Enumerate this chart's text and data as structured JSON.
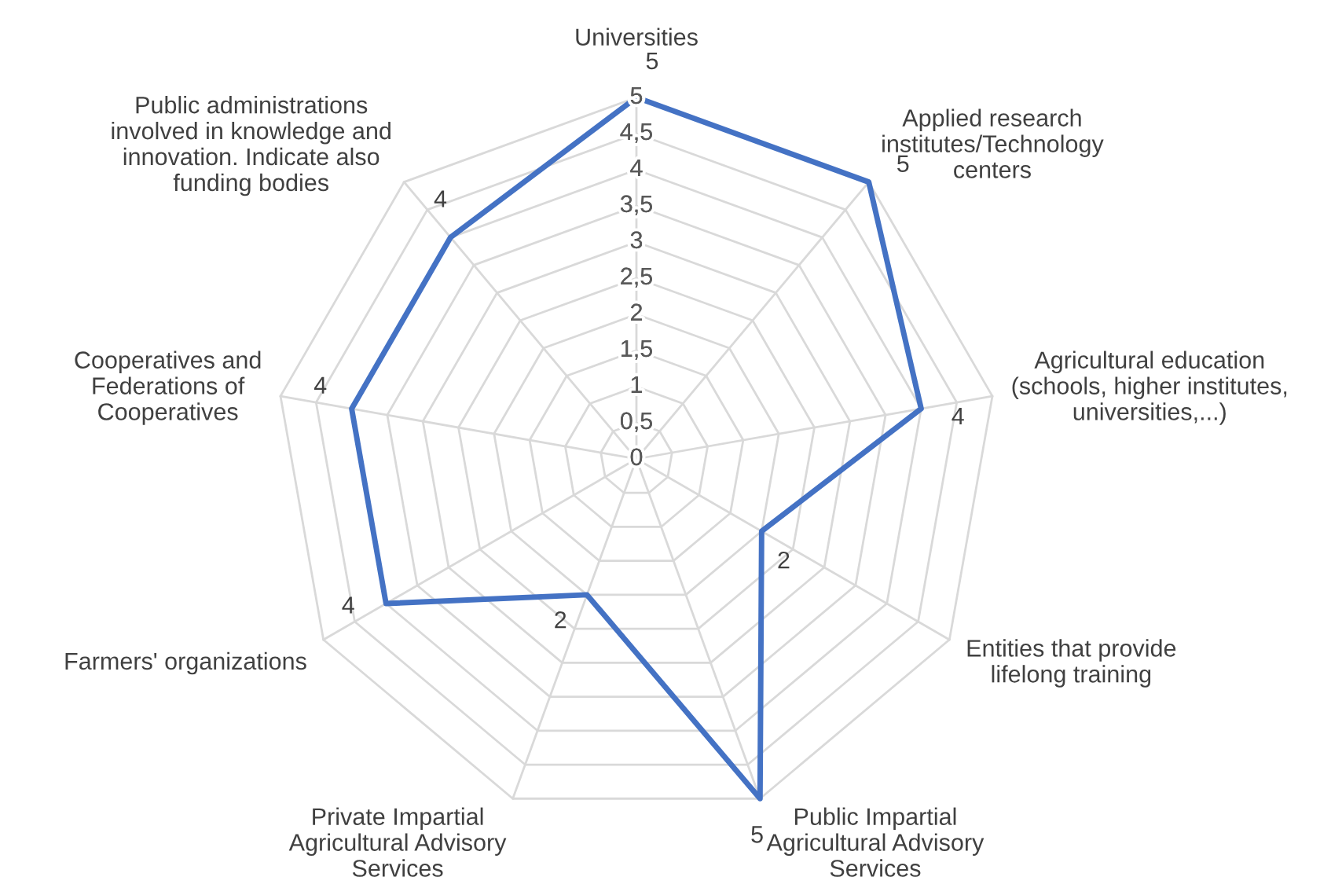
{
  "chart_data": {
    "type": "radar",
    "categories": [
      "Universities",
      "Applied research\ninstitutes/Technology\ncenters",
      "Agricultural education\n(schools, higher institutes,\nuniversities,...)",
      "Entities that provide\nlifelong training",
      "Public Impartial\nAgricultural Advisory\nServices",
      "Private Impartial\nAgricultural Advisory\nServices",
      "Farmers' organizations",
      "Cooperatives and\nFederations of\nCooperatives",
      "Public administrations\ninvolved in knowledge and\ninnovation. Indicate also\nfunding bodies"
    ],
    "series": [
      {
        "color": "#4472c4",
        "values": [
          5,
          5,
          4,
          2,
          5,
          2,
          4,
          4,
          4
        ]
      }
    ],
    "ylim": [
      0,
      5
    ],
    "yticks": [
      0,
      {
        "value": 0.5,
        "label": "0,5"
      },
      1,
      {
        "value": 1.5,
        "label": "1,5"
      },
      2,
      {
        "value": 2.5,
        "label": "2,5"
      },
      3,
      {
        "value": 3.5,
        "label": "3,5"
      },
      4,
      {
        "value": 4.5,
        "label": "4,5"
      },
      5
    ],
    "data_labels": true,
    "grid": true,
    "marker": "none",
    "line_style": "solid"
  }
}
